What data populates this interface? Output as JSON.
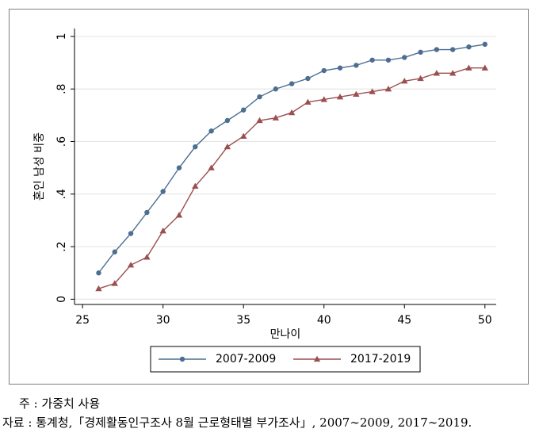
{
  "chart_data": {
    "type": "line",
    "title": "",
    "xlabel": "만나이",
    "ylabel": "혼인 남성 비중",
    "xlim": [
      24.5,
      50.7
    ],
    "ylim": [
      -0.02,
      1.03
    ],
    "xticks": [
      25,
      30,
      35,
      40,
      45,
      50
    ],
    "yticks": [
      0,
      0.2,
      0.4,
      0.6,
      0.8,
      1
    ],
    "ytick_labels": [
      "0",
      ".2",
      ".4",
      ".6",
      ".8",
      "1"
    ],
    "grid": true,
    "legend_position": "bottom",
    "x": [
      26,
      27,
      28,
      29,
      30,
      31,
      32,
      33,
      34,
      35,
      36,
      37,
      38,
      39,
      40,
      41,
      42,
      43,
      44,
      45,
      46,
      47,
      48,
      49,
      50
    ],
    "series": [
      {
        "name": "2007-2009",
        "color": "#4b6e91",
        "marker": "circle",
        "values": [
          0.1,
          0.18,
          0.25,
          0.33,
          0.41,
          0.5,
          0.58,
          0.64,
          0.68,
          0.72,
          0.77,
          0.8,
          0.82,
          0.84,
          0.87,
          0.88,
          0.89,
          0.91,
          0.91,
          0.92,
          0.94,
          0.95,
          0.95,
          0.96,
          0.97
        ]
      },
      {
        "name": "2017-2019",
        "color": "#9b4f4f",
        "marker": "triangle",
        "values": [
          0.04,
          0.06,
          0.13,
          0.16,
          0.26,
          0.32,
          0.43,
          0.5,
          0.58,
          0.62,
          0.68,
          0.69,
          0.71,
          0.75,
          0.76,
          0.77,
          0.78,
          0.79,
          0.8,
          0.83,
          0.84,
          0.86,
          0.86,
          0.88,
          0.88
        ]
      }
    ]
  },
  "notes": {
    "line1": "주 : 가중치 사용",
    "line2": "자료 : 통계청,「경제활동인구조사 8월 근로형태별 부가조사」, 2007∼2009, 2017∼2019."
  }
}
